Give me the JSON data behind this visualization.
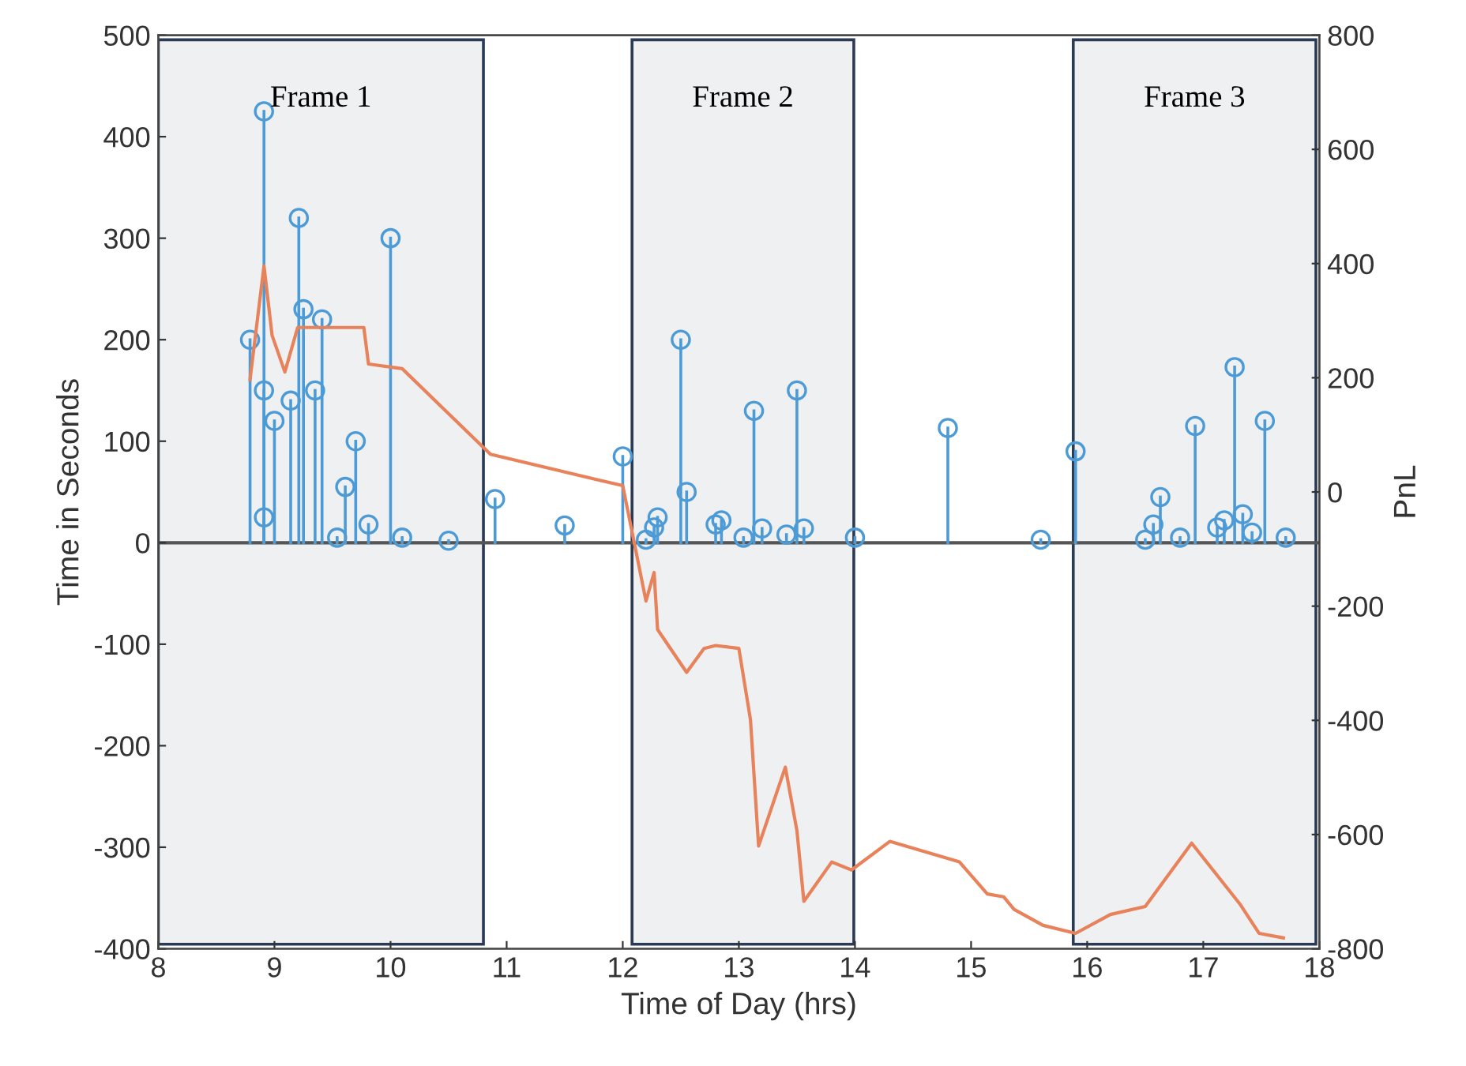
{
  "chart_data": {
    "type": "lollipop",
    "xlabel": "Time of Day (hrs)",
    "ylabel": "Time in Seconds",
    "y2label": "PnL",
    "xlim": [
      8,
      18
    ],
    "xticks": [
      8,
      9,
      10,
      11,
      12,
      13,
      14,
      15,
      16,
      17,
      18
    ],
    "ylim": [
      -400,
      500
    ],
    "yticks": [
      -400,
      -300,
      -200,
      -100,
      0,
      100,
      200,
      300,
      400,
      500
    ],
    "y2lim": [
      -800,
      800
    ],
    "y2ticks": [
      -800,
      -600,
      -400,
      -200,
      0,
      200,
      400,
      600,
      800
    ],
    "marker": "circle",
    "grid": false,
    "series": [
      {
        "color": "#4d9bd6",
        "x": [
          8.79,
          8.91,
          8.91,
          8.91,
          9.0,
          9.14,
          9.21,
          9.25,
          9.41,
          9.35,
          9.54,
          9.61,
          9.7,
          9.81,
          10.0,
          10.1,
          10.5,
          10.9,
          11.5,
          12.0,
          12.2,
          12.27,
          12.3,
          12.5,
          12.55,
          12.8,
          12.85,
          13.04,
          13.13,
          13.2,
          13.41,
          13.5,
          13.56,
          14.0,
          14.8,
          15.6,
          15.9,
          16.5,
          16.57,
          16.63,
          16.8,
          16.93,
          17.12,
          17.18,
          17.27,
          17.34,
          17.42,
          17.53,
          17.71
        ],
        "values": [
          200,
          425,
          150,
          25,
          120,
          140,
          320,
          230,
          220,
          150,
          5,
          55,
          100,
          18,
          300,
          5,
          2,
          43,
          17,
          85,
          3,
          15,
          25,
          200,
          50,
          18,
          22,
          5,
          130,
          14,
          8,
          150,
          14,
          5,
          113,
          3,
          90,
          3,
          18,
          45,
          5,
          115,
          15,
          22,
          173,
          28,
          10,
          120,
          5
        ]
      },
      {
        "type": "line",
        "axis": "y2",
        "marker": "none",
        "color": "#e8825a",
        "x": [
          8.79,
          8.91,
          8.98,
          9.09,
          9.2,
          9.36,
          9.77,
          9.81,
          10.1,
          10.86,
          12.0,
          12.2,
          12.27,
          12.3,
          12.55,
          12.7,
          12.8,
          13.0,
          13.1,
          13.17,
          13.4,
          13.5,
          13.56,
          13.8,
          13.97,
          14.3,
          14.9,
          15.14,
          15.28,
          15.37,
          15.62,
          15.9,
          16.2,
          16.5,
          16.9,
          17.32,
          17.48,
          17.69
        ],
        "values": [
          197,
          396,
          274,
          210,
          288,
          288,
          288,
          224,
          216,
          66,
          11,
          -191,
          -141,
          -241,
          -316,
          -274,
          -269,
          -274,
          -399,
          -620,
          -482,
          -593,
          -717,
          -648,
          -662,
          -612,
          -648,
          -704,
          -709,
          -731,
          -759,
          -773,
          -740,
          -726,
          -615,
          -723,
          -773,
          -781
        ]
      }
    ],
    "ref_lines": [
      {
        "axis": "y",
        "value": 0,
        "color": "#555555"
      }
    ],
    "bands": [
      {
        "axis": "x",
        "from": 8.0,
        "to": 10.8,
        "label": "Frame 1",
        "color": "#2b3a55"
      },
      {
        "axis": "x",
        "from": 12.08,
        "to": 13.99,
        "label": "Frame 2",
        "color": "#2b3a55"
      },
      {
        "axis": "x",
        "from": 15.88,
        "to": 17.97,
        "label": "Frame 3",
        "color": "#2b3a55"
      }
    ]
  }
}
